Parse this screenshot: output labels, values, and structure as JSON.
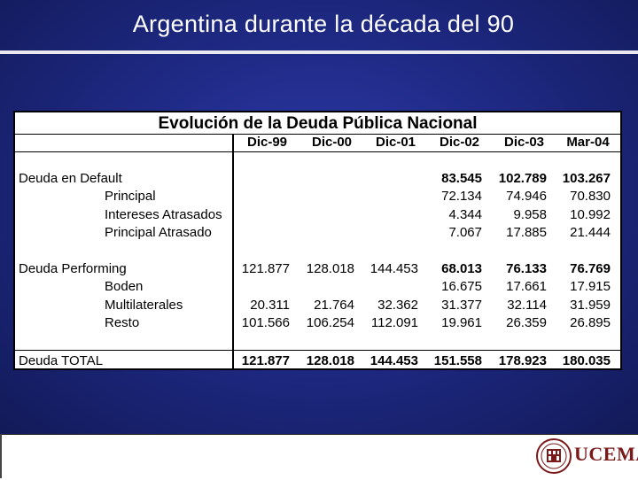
{
  "slide": {
    "title": "Argentina durante la década del 90"
  },
  "table": {
    "title": "Evolución de la Deuda Pública Nacional",
    "columns": [
      "Dic-99",
      "Dic-00",
      "Dic-01",
      "Dic-02",
      "Dic-03",
      "Mar-04"
    ],
    "rows": [
      {
        "label": "Deuda en Default",
        "values": [
          "",
          "",
          "",
          "83.545",
          "102.789",
          "103.267"
        ],
        "bold_from": 3
      },
      {
        "label": "Principal",
        "values": [
          "",
          "",
          "",
          "72.134",
          "74.946",
          "70.830"
        ]
      },
      {
        "label": "Intereses Atrasados",
        "values": [
          "",
          "",
          "",
          "4.344",
          "9.958",
          "10.992"
        ]
      },
      {
        "label": "Principal Atrasado",
        "values": [
          "",
          "",
          "",
          "7.067",
          "17.885",
          "21.444"
        ]
      },
      {
        "label": "Deuda Performing",
        "values": [
          "121.877",
          "128.018",
          "144.453",
          "68.013",
          "76.133",
          "76.769"
        ],
        "bold_from": 3
      },
      {
        "label": "Boden",
        "values": [
          "",
          "",
          "",
          "16.675",
          "17.661",
          "17.915"
        ]
      },
      {
        "label": "Multilaterales",
        "values": [
          "20.311",
          "21.764",
          "32.362",
          "31.377",
          "32.114",
          "31.959"
        ]
      },
      {
        "label": "Resto",
        "values": [
          "101.566",
          "106.254",
          "112.091",
          "19.961",
          "26.359",
          "26.895"
        ]
      },
      {
        "label": "Deuda TOTAL",
        "values": [
          "121.877",
          "128.018",
          "144.453",
          "151.558",
          "178.923",
          "180.035"
        ],
        "bold_from": 0
      }
    ]
  },
  "footer": {
    "logo_text": "UCEMA"
  },
  "colors": {
    "background": "#1f2a86",
    "logo": "#7a1a1a"
  }
}
